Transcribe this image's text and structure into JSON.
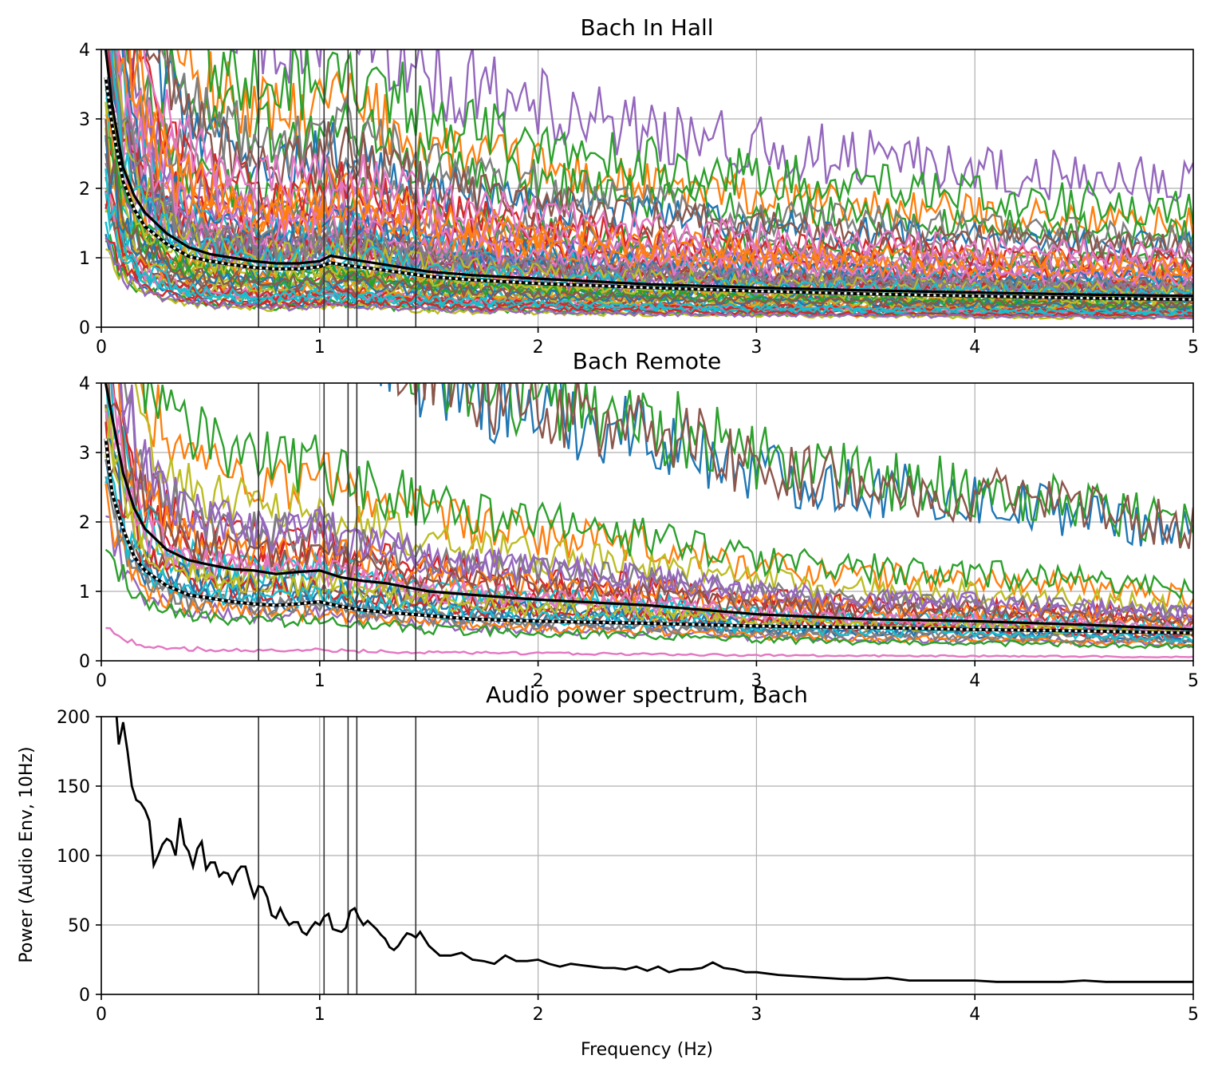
{
  "chart_data": [
    {
      "type": "line",
      "title": "Bach In Hall",
      "xlim": [
        0,
        5
      ],
      "ylim": [
        0,
        4
      ],
      "xticks": [
        0,
        1,
        2,
        3,
        4,
        5
      ],
      "yticks": [
        0,
        1,
        2,
        3,
        4
      ],
      "grid": true,
      "xlabel": "",
      "ylabel": "",
      "vlines": [
        0.72,
        1.02,
        1.13,
        1.17,
        1.44
      ],
      "mean_line": {
        "style": "solid black",
        "x": [
          0.02,
          0.05,
          0.1,
          0.15,
          0.2,
          0.3,
          0.4,
          0.5,
          0.6,
          0.7,
          0.8,
          0.9,
          1.0,
          1.05,
          1.1,
          1.2,
          1.3,
          1.5,
          1.7,
          2.0,
          2.5,
          3.0,
          3.5,
          4.0,
          4.5,
          5.0
        ],
        "y": [
          4.0,
          3.2,
          2.3,
          1.9,
          1.65,
          1.35,
          1.15,
          1.05,
          1.0,
          0.95,
          0.92,
          0.92,
          0.95,
          1.03,
          1.0,
          0.95,
          0.9,
          0.8,
          0.75,
          0.7,
          0.62,
          0.57,
          0.53,
          0.5,
          0.47,
          0.45
        ]
      },
      "median_line": {
        "style": "dotted black/white",
        "x": [
          0.02,
          0.05,
          0.1,
          0.15,
          0.2,
          0.3,
          0.4,
          0.5,
          0.6,
          0.7,
          0.8,
          0.9,
          1.0,
          1.05,
          1.1,
          1.2,
          1.3,
          1.5,
          1.7,
          2.0,
          2.5,
          3.0,
          3.5,
          4.0,
          4.5,
          5.0
        ],
        "y": [
          3.6,
          2.9,
          2.1,
          1.7,
          1.45,
          1.2,
          1.02,
          0.95,
          0.9,
          0.86,
          0.84,
          0.84,
          0.87,
          0.93,
          0.9,
          0.86,
          0.82,
          0.73,
          0.68,
          0.63,
          0.57,
          0.52,
          0.48,
          0.45,
          0.42,
          0.4
        ]
      },
      "participant_count_shown": 70
    },
    {
      "type": "line",
      "title": "Bach Remote",
      "xlim": [
        0,
        5
      ],
      "ylim": [
        0,
        4
      ],
      "xticks": [
        0,
        1,
        2,
        3,
        4,
        5
      ],
      "yticks": [
        0,
        1,
        2,
        3,
        4
      ],
      "grid": true,
      "xlabel": "",
      "ylabel": "",
      "vlines": [
        0.72,
        1.02,
        1.13,
        1.17,
        1.44
      ],
      "mean_line": {
        "style": "solid black",
        "x": [
          0.02,
          0.05,
          0.1,
          0.15,
          0.2,
          0.3,
          0.4,
          0.5,
          0.6,
          0.7,
          0.8,
          0.9,
          1.0,
          1.1,
          1.2,
          1.3,
          1.5,
          1.7,
          2.0,
          2.5,
          3.0,
          3.5,
          4.0,
          4.5,
          5.0
        ],
        "y": [
          4.0,
          3.5,
          2.7,
          2.2,
          1.9,
          1.6,
          1.45,
          1.38,
          1.32,
          1.3,
          1.25,
          1.28,
          1.3,
          1.2,
          1.15,
          1.12,
          1.0,
          0.95,
          0.88,
          0.8,
          0.67,
          0.6,
          0.57,
          0.52,
          0.45
        ]
      },
      "median_line": {
        "style": "dotted black/white",
        "x": [
          0.02,
          0.05,
          0.1,
          0.15,
          0.2,
          0.3,
          0.4,
          0.5,
          0.6,
          0.7,
          0.8,
          0.9,
          1.0,
          1.1,
          1.2,
          1.3,
          1.5,
          1.7,
          2.0,
          2.5,
          3.0,
          3.5,
          4.0,
          4.5,
          5.0
        ],
        "y": [
          3.2,
          2.4,
          1.9,
          1.5,
          1.3,
          1.08,
          0.95,
          0.9,
          0.85,
          0.82,
          0.8,
          0.82,
          0.85,
          0.78,
          0.73,
          0.7,
          0.65,
          0.6,
          0.57,
          0.54,
          0.5,
          0.48,
          0.45,
          0.43,
          0.4
        ]
      },
      "participant_count_shown": 30
    },
    {
      "type": "line",
      "title": "Audio power spectrum, Bach",
      "xlabel": "Frequency (Hz)",
      "ylabel": "Power (Audio Env, 10Hz)",
      "xlim": [
        0,
        5
      ],
      "ylim": [
        0,
        200
      ],
      "xticks": [
        0,
        1,
        2,
        3,
        4,
        5
      ],
      "yticks": [
        0,
        50,
        100,
        150,
        200
      ],
      "grid": true,
      "vlines": [
        0.72,
        1.02,
        1.13,
        1.17,
        1.44
      ],
      "series": [
        {
          "color": "#000000",
          "x": [
            0.07,
            0.08,
            0.1,
            0.12,
            0.14,
            0.16,
            0.18,
            0.2,
            0.22,
            0.24,
            0.26,
            0.28,
            0.3,
            0.32,
            0.34,
            0.36,
            0.38,
            0.4,
            0.42,
            0.44,
            0.46,
            0.48,
            0.5,
            0.52,
            0.54,
            0.56,
            0.58,
            0.6,
            0.62,
            0.64,
            0.66,
            0.68,
            0.7,
            0.72,
            0.74,
            0.76,
            0.78,
            0.8,
            0.82,
            0.84,
            0.86,
            0.88,
            0.9,
            0.92,
            0.94,
            0.96,
            0.98,
            1.0,
            1.02,
            1.04,
            1.06,
            1.08,
            1.1,
            1.12,
            1.14,
            1.16,
            1.18,
            1.2,
            1.22,
            1.24,
            1.26,
            1.28,
            1.3,
            1.32,
            1.34,
            1.36,
            1.38,
            1.4,
            1.42,
            1.44,
            1.46,
            1.48,
            1.5,
            1.55,
            1.6,
            1.65,
            1.7,
            1.75,
            1.8,
            1.85,
            1.9,
            1.95,
            2.0,
            2.05,
            2.1,
            2.15,
            2.2,
            2.25,
            2.3,
            2.35,
            2.4,
            2.45,
            2.5,
            2.55,
            2.6,
            2.65,
            2.7,
            2.75,
            2.8,
            2.85,
            2.9,
            2.95,
            3.0,
            3.1,
            3.2,
            3.3,
            3.4,
            3.5,
            3.6,
            3.7,
            3.8,
            3.9,
            4.0,
            4.1,
            4.2,
            4.3,
            4.4,
            4.5,
            4.6,
            4.7,
            4.8,
            4.9,
            5.0
          ],
          "y": [
            200,
            180,
            196,
            175,
            150,
            140,
            138,
            133,
            125,
            93,
            100,
            108,
            112,
            110,
            100,
            127,
            108,
            103,
            92,
            105,
            110,
            90,
            95,
            95,
            85,
            88,
            87,
            80,
            88,
            92,
            92,
            80,
            70,
            78,
            77,
            70,
            57,
            55,
            62,
            55,
            50,
            52,
            52,
            45,
            43,
            48,
            52,
            50,
            56,
            58,
            47,
            46,
            45,
            48,
            60,
            62,
            55,
            50,
            53,
            50,
            47,
            43,
            40,
            34,
            32,
            35,
            40,
            44,
            43,
            41,
            45,
            40,
            35,
            28,
            28,
            30,
            25,
            24,
            22,
            28,
            24,
            24,
            25,
            22,
            20,
            22,
            21,
            20,
            19,
            19,
            18,
            20,
            17,
            20,
            16,
            18,
            18,
            19,
            23,
            19,
            18,
            16,
            16,
            14,
            13,
            12,
            11,
            11,
            12,
            10,
            10,
            10,
            10,
            9,
            9,
            9,
            9,
            10,
            9,
            9,
            9,
            9,
            9
          ]
        }
      ]
    }
  ]
}
